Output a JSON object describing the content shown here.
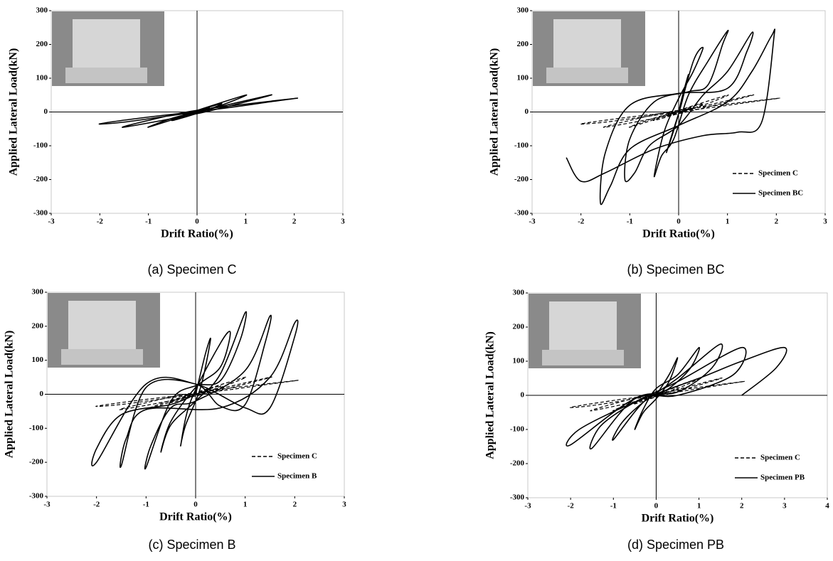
{
  "chart_data": [
    {
      "type": "line",
      "caption": "(a) Specimen C",
      "x_label": "Drift Ratio(%)",
      "y_label": "Applied Lateral Load(kN)",
      "xlim": [
        -3,
        3
      ],
      "xticks": [
        -3,
        -2,
        -1,
        0,
        1,
        2,
        3
      ],
      "ylim": [
        -300,
        300
      ],
      "yticks": [
        -300,
        -200,
        -100,
        0,
        100,
        200,
        300
      ],
      "series": [
        {
          "color": "#000000",
          "dashed": false,
          "x": [
            0,
            0.25,
            0.1,
            -0.25,
            -0.1,
            0.5,
            0.2,
            -0.5,
            -0.2,
            1,
            0.5,
            0,
            -1,
            -0.5,
            0,
            1.5,
            1,
            0,
            -1.5,
            -1,
            0,
            2,
            1.5,
            0.5,
            -1,
            -2,
            -1.5,
            -0.5,
            0
          ],
          "values": [
            0,
            12,
            2,
            -12,
            -2,
            25,
            5,
            -25,
            -5,
            50,
            20,
            0,
            -45,
            -18,
            0,
            50,
            30,
            -5,
            -45,
            -25,
            5,
            40,
            30,
            10,
            -15,
            -35,
            -30,
            -10,
            0
          ]
        }
      ]
    },
    {
      "type": "line",
      "caption": "(b) Specimen BC",
      "x_label": "Drift Ratio(%)",
      "y_label": "Applied Lateral Load(kN)",
      "xlim": [
        -3,
        3
      ],
      "xticks": [
        -3,
        -2,
        -1,
        0,
        1,
        2,
        3
      ],
      "ylim": [
        -300,
        300
      ],
      "yticks": [
        -300,
        -200,
        -100,
        0,
        100,
        200,
        300
      ],
      "legend": "lower right",
      "series": [
        {
          "name": "Specimen C",
          "color": "#000000",
          "dashed": true,
          "x": [
            0,
            0.25,
            0.1,
            -0.25,
            -0.1,
            0.5,
            0.2,
            -0.5,
            -0.2,
            1,
            0.5,
            0,
            -1,
            -0.5,
            0,
            1.5,
            1,
            0,
            -1.5,
            -1,
            0,
            2,
            1.5,
            0.5,
            -1,
            -2,
            -1.5,
            -0.5,
            0
          ],
          "values": [
            0,
            12,
            2,
            -12,
            -2,
            25,
            5,
            -25,
            -5,
            50,
            20,
            0,
            -45,
            -18,
            0,
            50,
            30,
            -5,
            -45,
            -25,
            5,
            40,
            30,
            10,
            -15,
            -35,
            -30,
            -10,
            0
          ]
        },
        {
          "name": "Specimen BC",
          "color": "#000000",
          "dashed": false,
          "x": [
            0,
            0.1,
            0.2,
            0.05,
            -0.1,
            -0.25,
            -0.05,
            0.3,
            0.5,
            0.3,
            0,
            -0.3,
            -0.5,
            -0.35,
            -0.1,
            0.2,
            0.6,
            1.0,
            0.9,
            0.6,
            0.2,
            -0.5,
            -1,
            -1.1,
            -0.9,
            -0.6,
            0,
            0.5,
            1.0,
            1.5,
            1.4,
            1,
            0,
            -1,
            -1.5,
            -1.6,
            -1.4,
            -1,
            0,
            1,
            1.5,
            1.9,
            1.95,
            1.7,
            1.2,
            0.5,
            -0.5,
            -1.5,
            -2,
            -2.3
          ],
          "values": [
            0,
            60,
            110,
            20,
            -50,
            -120,
            -30,
            150,
            190,
            120,
            40,
            -60,
            -190,
            -130,
            -80,
            50,
            150,
            240,
            200,
            80,
            60,
            30,
            -80,
            -200,
            -180,
            -100,
            -40,
            50,
            120,
            235,
            180,
            70,
            55,
            20,
            -120,
            -270,
            -220,
            -110,
            -40,
            30,
            120,
            225,
            220,
            -30,
            -60,
            -70,
            -110,
            -180,
            -205,
            -135
          ]
        }
      ]
    },
    {
      "type": "line",
      "caption": "(c) Specimen B",
      "x_label": "Drift Ratio(%)",
      "y_label": "Applied Lateral Load(kN)",
      "xlim": [
        -3,
        3
      ],
      "xticks": [
        -3,
        -2,
        -1,
        0,
        1,
        2,
        3
      ],
      "ylim": [
        -300,
        300
      ],
      "yticks": [
        -300,
        -200,
        -100,
        0,
        100,
        200,
        300
      ],
      "legend": "lower right",
      "series": [
        {
          "name": "Specimen C",
          "color": "#000000",
          "dashed": true,
          "x": [
            0,
            0.25,
            0.1,
            -0.25,
            -0.1,
            0.5,
            0.2,
            -0.5,
            -0.2,
            1,
            0.5,
            0,
            -1,
            -0.5,
            0,
            1.5,
            1,
            0,
            -1.5,
            -1,
            0,
            2,
            1.5,
            0.5,
            -1,
            -2,
            -1.5,
            -0.5,
            0
          ],
          "values": [
            0,
            12,
            2,
            -12,
            -2,
            25,
            5,
            -25,
            -5,
            50,
            20,
            0,
            -45,
            -18,
            0,
            50,
            30,
            -5,
            -45,
            -25,
            5,
            40,
            30,
            10,
            -15,
            -35,
            -30,
            -10,
            0
          ]
        },
        {
          "name": "Specimen B",
          "color": "#000000",
          "dashed": false,
          "x": [
            0,
            0.2,
            0.3,
            0.1,
            -0.2,
            -0.3,
            -0.1,
            0.5,
            0.7,
            0.5,
            0,
            -0.5,
            -0.7,
            -0.5,
            0,
            0.5,
            1,
            0.9,
            0.5,
            0,
            -0.5,
            -1,
            -0.9,
            -0.5,
            0,
            1,
            1.5,
            1.4,
            1,
            0.5,
            0,
            -1,
            -1.5,
            -1.4,
            -1,
            0.5,
            1.5,
            2,
            2,
            1.5,
            1,
            0,
            -1,
            -2,
            -2,
            -1.5,
            -0.5,
            0
          ],
          "values": [
            0,
            120,
            160,
            20,
            -90,
            -150,
            -20,
            150,
            180,
            80,
            20,
            -80,
            -170,
            -90,
            -20,
            60,
            240,
            160,
            40,
            25,
            -20,
            -215,
            -150,
            -40,
            -20,
            70,
            230,
            150,
            -30,
            -35,
            30,
            20,
            -210,
            -130,
            -45,
            -40,
            50,
            210,
            170,
            -40,
            -40,
            30,
            30,
            -200,
            -160,
            -60,
            -30,
            0
          ]
        }
      ]
    },
    {
      "type": "line",
      "caption": "(d) Specimen PB",
      "x_label": "Drift Ratio(%)",
      "y_label": "Applied Lateral Load(kN)",
      "xlim": [
        -3,
        4
      ],
      "xticks": [
        -3,
        -2,
        -1,
        0,
        1,
        2,
        3,
        4
      ],
      "ylim": [
        -300,
        300
      ],
      "yticks": [
        -300,
        -200,
        -100,
        0,
        100,
        200,
        300
      ],
      "legend": "lower right",
      "series": [
        {
          "name": "Specimen C",
          "color": "#000000",
          "dashed": true,
          "x": [
            0,
            0.25,
            0.1,
            -0.25,
            -0.1,
            0.5,
            0.2,
            -0.5,
            -0.2,
            1,
            0.5,
            0,
            -1,
            -0.5,
            0,
            1.5,
            1,
            0,
            -1.5,
            -1,
            0,
            2,
            1.5,
            0.5,
            -1,
            -2,
            -1.5,
            -0.5,
            0
          ],
          "values": [
            0,
            12,
            2,
            -12,
            -2,
            25,
            5,
            -25,
            -5,
            50,
            20,
            0,
            -45,
            -18,
            0,
            50,
            30,
            -5,
            -45,
            -25,
            5,
            40,
            30,
            10,
            -15,
            -35,
            -30,
            -10,
            0
          ]
        },
        {
          "name": "Specimen PB",
          "color": "#000000",
          "dashed": false,
          "x": [
            0,
            0.3,
            0.5,
            0.3,
            0,
            -0.3,
            -0.5,
            -0.3,
            0,
            0.5,
            1,
            0.8,
            0.3,
            -0.3,
            -1,
            -0.8,
            -0.3,
            0.5,
            1.5,
            1.3,
            0.5,
            -0.5,
            -1.5,
            -1.3,
            -0.5,
            0.5,
            2,
            1.8,
            0.5,
            -0.5,
            -2,
            -1.8,
            -0.5,
            1,
            2,
            3,
            2.8,
            2
          ],
          "values": [
            0,
            60,
            110,
            40,
            -10,
            -50,
            -100,
            -40,
            20,
            60,
            140,
            80,
            20,
            -20,
            -130,
            -80,
            -20,
            50,
            150,
            80,
            10,
            -10,
            -155,
            -90,
            -20,
            40,
            140,
            60,
            0,
            -10,
            -145,
            -100,
            -20,
            50,
            100,
            140,
            80,
            0
          ]
        }
      ]
    }
  ]
}
